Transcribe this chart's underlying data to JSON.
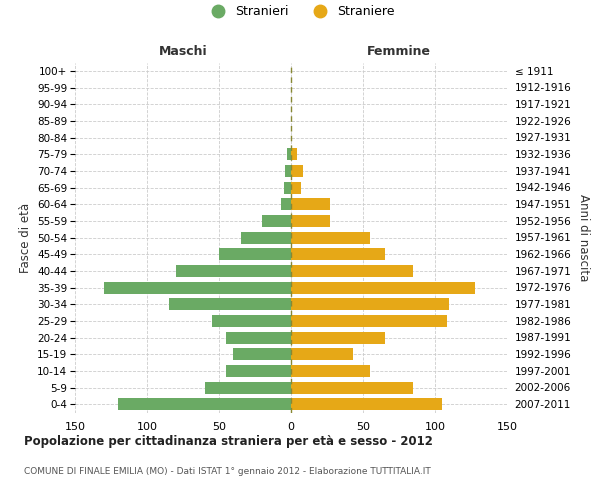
{
  "age_groups": [
    "100+",
    "95-99",
    "90-94",
    "85-89",
    "80-84",
    "75-79",
    "70-74",
    "65-69",
    "60-64",
    "55-59",
    "50-54",
    "45-49",
    "40-44",
    "35-39",
    "30-34",
    "25-29",
    "20-24",
    "15-19",
    "10-14",
    "5-9",
    "0-4"
  ],
  "birth_years": [
    "≤ 1911",
    "1912-1916",
    "1917-1921",
    "1922-1926",
    "1927-1931",
    "1932-1936",
    "1937-1941",
    "1942-1946",
    "1947-1951",
    "1952-1956",
    "1957-1961",
    "1962-1966",
    "1967-1971",
    "1972-1976",
    "1977-1981",
    "1982-1986",
    "1987-1991",
    "1992-1996",
    "1997-2001",
    "2002-2006",
    "2007-2011"
  ],
  "maschi": [
    0,
    0,
    0,
    0,
    0,
    3,
    4,
    5,
    7,
    20,
    35,
    50,
    80,
    130,
    85,
    55,
    45,
    40,
    45,
    60,
    120
  ],
  "femmine": [
    0,
    0,
    0,
    0,
    0,
    4,
    8,
    7,
    27,
    27,
    55,
    65,
    85,
    128,
    110,
    108,
    65,
    43,
    55,
    85,
    105
  ],
  "maschi_color": "#6aaa64",
  "femmine_color": "#e6a817",
  "bg_color": "#ffffff",
  "grid_color": "#cccccc",
  "title": "Popolazione per cittadinanza straniera per età e sesso - 2012",
  "subtitle": "COMUNE DI FINALE EMILIA (MO) - Dati ISTAT 1° gennaio 2012 - Elaborazione TUTTITALIA.IT",
  "xlabel_left": "Maschi",
  "xlabel_right": "Femmine",
  "ylabel_left": "Fasce di età",
  "ylabel_right": "Anni di nascita",
  "legend_stranieri": "Stranieri",
  "legend_straniere": "Straniere",
  "xlim": 150
}
